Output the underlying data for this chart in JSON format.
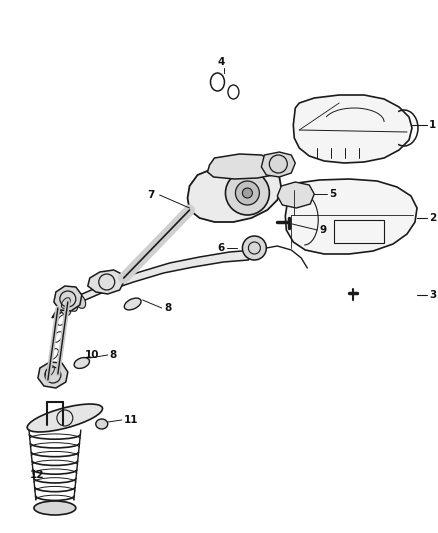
{
  "bg_color": "#ffffff",
  "lc": "#1a1a1a",
  "tc": "#111111",
  "fig_width": 4.38,
  "fig_height": 5.33,
  "dpi": 100,
  "fs": 7.5
}
